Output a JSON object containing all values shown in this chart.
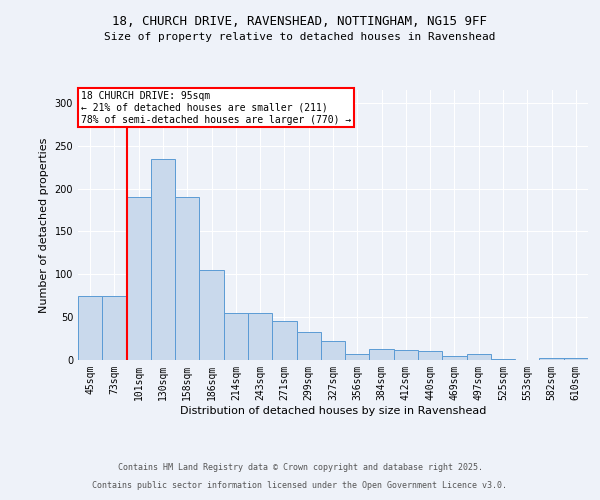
{
  "title_line1": "18, CHURCH DRIVE, RAVENSHEAD, NOTTINGHAM, NG15 9FF",
  "title_line2": "Size of property relative to detached houses in Ravenshead",
  "categories": [
    "45sqm",
    "73sqm",
    "101sqm",
    "130sqm",
    "158sqm",
    "186sqm",
    "214sqm",
    "243sqm",
    "271sqm",
    "299sqm",
    "327sqm",
    "356sqm",
    "384sqm",
    "412sqm",
    "440sqm",
    "469sqm",
    "497sqm",
    "525sqm",
    "553sqm",
    "582sqm",
    "610sqm"
  ],
  "values": [
    75,
    75,
    190,
    235,
    190,
    105,
    55,
    55,
    45,
    33,
    22,
    7,
    13,
    12,
    10,
    5,
    7,
    1,
    0,
    2,
    2
  ],
  "bar_color": "#c9d9ec",
  "bar_edge_color": "#5b9bd5",
  "vline_color": "red",
  "ylabel": "Number of detached properties",
  "xlabel": "Distribution of detached houses by size in Ravenshead",
  "annotation_title": "18 CHURCH DRIVE: 95sqm",
  "annotation_line2": "← 21% of detached houses are smaller (211)",
  "annotation_line3": "78% of semi-detached houses are larger (770) →",
  "ylim": [
    0,
    315
  ],
  "footnote1": "Contains HM Land Registry data © Crown copyright and database right 2025.",
  "footnote2": "Contains public sector information licensed under the Open Government Licence v3.0.",
  "background_color": "#eef2f9",
  "plot_bg_color": "#eef2f9"
}
